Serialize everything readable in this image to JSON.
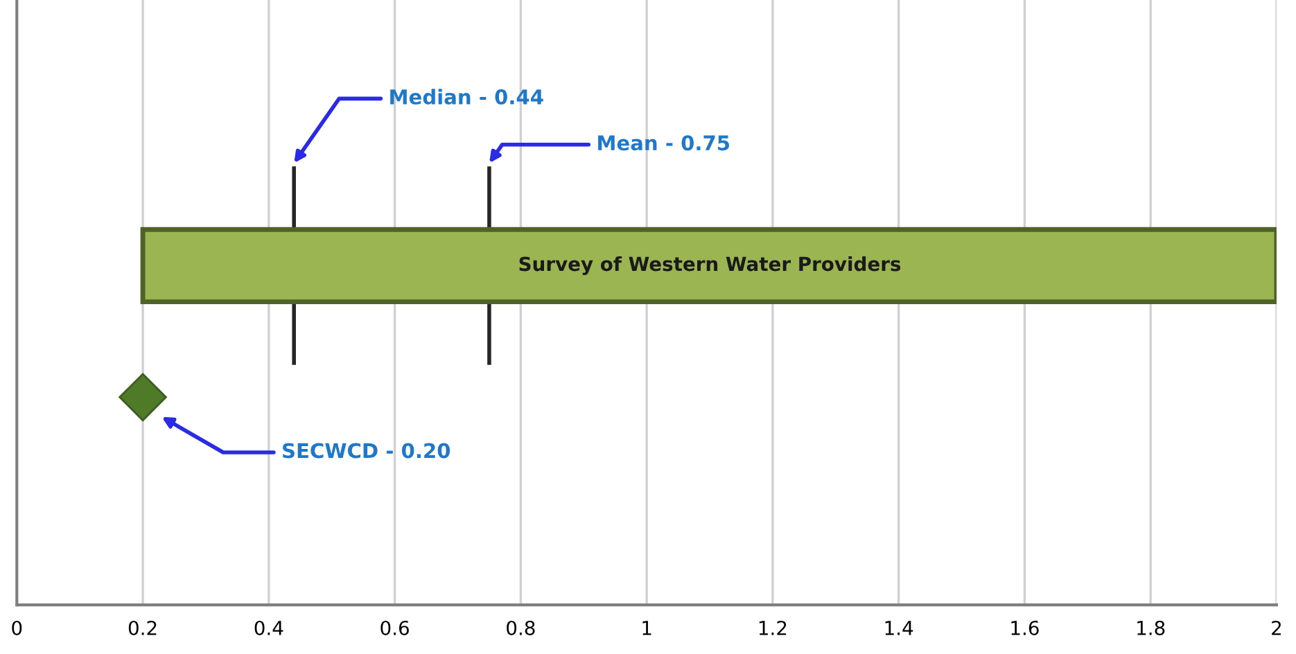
{
  "chart_data": {
    "type": "bar",
    "orientation": "horizontal",
    "categories": [
      null,
      null
    ],
    "series": [
      {
        "name": "Survey of Western Water Providers",
        "color": "#9bb552",
        "values": [
          1.8,
          null
        ],
        "base": [
          0.2,
          null
        ]
      },
      {
        "type": "scatter",
        "color": "#4f7a28",
        "marker": "diamond",
        "values": [
          null,
          0.2
        ]
      }
    ],
    "ref_lines": [
      {
        "axis": "x",
        "value": 0.44,
        "label": "Median - 0.44",
        "color": "#262626"
      },
      {
        "axis": "x",
        "value": 0.75,
        "label": "Mean - 0.75",
        "color": "#262626"
      }
    ],
    "annotations": [
      "SECWCD - 0.20"
    ],
    "xlim": [
      0,
      2
    ],
    "xticks": [
      0,
      0.2,
      0.4,
      0.6,
      0.8,
      1,
      1.2,
      1.4,
      1.6,
      1.8,
      2
    ],
    "grid": "x",
    "tick_labels": "x"
  }
}
